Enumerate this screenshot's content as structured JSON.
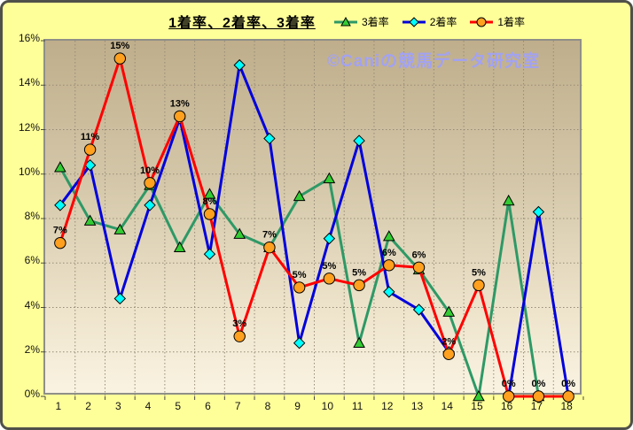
{
  "title": "1着率、2着率、3着率",
  "watermark": "©Caniの競馬データ研究室",
  "colors": {
    "page_background": "#FFFF99",
    "plot_top": "#bfae8b",
    "plot_bottom": "#faf3e2",
    "watermark_text": "#a2a2f2",
    "series_3rd": "#2E9966",
    "series_2nd": "#0000DD",
    "series_1st": "#FF0000",
    "marker_3rd": "#33CC33",
    "marker_2nd": "#00FFFF",
    "marker_1st": "#FFA01E"
  },
  "chart_data": {
    "type": "line",
    "title": "1着率、2着率、3着率",
    "legend_position": "top-right",
    "grid": true,
    "x_categories": [
      "1",
      "2",
      "3",
      "4",
      "5",
      "6",
      "7",
      "8",
      "9",
      "10",
      "11",
      "12",
      "13",
      "14",
      "15",
      "16",
      "17",
      "18"
    ],
    "ylim": [
      0,
      16
    ],
    "ytick_values": [
      16,
      14,
      12,
      10,
      8,
      6,
      4,
      2,
      0
    ],
    "ytick_labels": [
      "16%",
      "14%",
      "12%",
      "10%",
      "8%",
      "6%",
      "4%",
      "2%",
      "0%"
    ],
    "series": [
      {
        "name": "3着率",
        "marker": "triangle",
        "line_color": "#2E9966",
        "marker_fill": "#33CC33",
        "values": [
          10.3,
          7.9,
          7.5,
          9.5,
          6.7,
          9.1,
          7.3,
          6.7,
          9.0,
          9.8,
          2.4,
          7.2,
          5.7,
          3.8,
          0,
          8.8,
          0,
          null
        ]
      },
      {
        "name": "2着率",
        "marker": "diamond",
        "line_color": "#0000DD",
        "marker_fill": "#00FFFF",
        "values": [
          8.6,
          10.4,
          4.4,
          8.6,
          12.5,
          6.4,
          14.9,
          11.6,
          2.4,
          7.1,
          11.5,
          4.7,
          3.9,
          2.0,
          null,
          0,
          8.3,
          0
        ]
      },
      {
        "name": "1着率",
        "marker": "circle",
        "line_color": "#FF0000",
        "marker_fill": "#FFA01E",
        "values": [
          6.9,
          11.1,
          15.2,
          9.6,
          12.6,
          8.2,
          2.7,
          6.7,
          4.9,
          5.3,
          5.0,
          5.9,
          5.8,
          1.9,
          5.0,
          0,
          0,
          0
        ],
        "data_labels": [
          "7%",
          "11%",
          "15%",
          "10%",
          "13%",
          "8%",
          "3%",
          "7%",
          "5%",
          "5%",
          "5%",
          "6%",
          "6%",
          "2%",
          "5%",
          "0%",
          "0%",
          "0%"
        ]
      }
    ]
  }
}
